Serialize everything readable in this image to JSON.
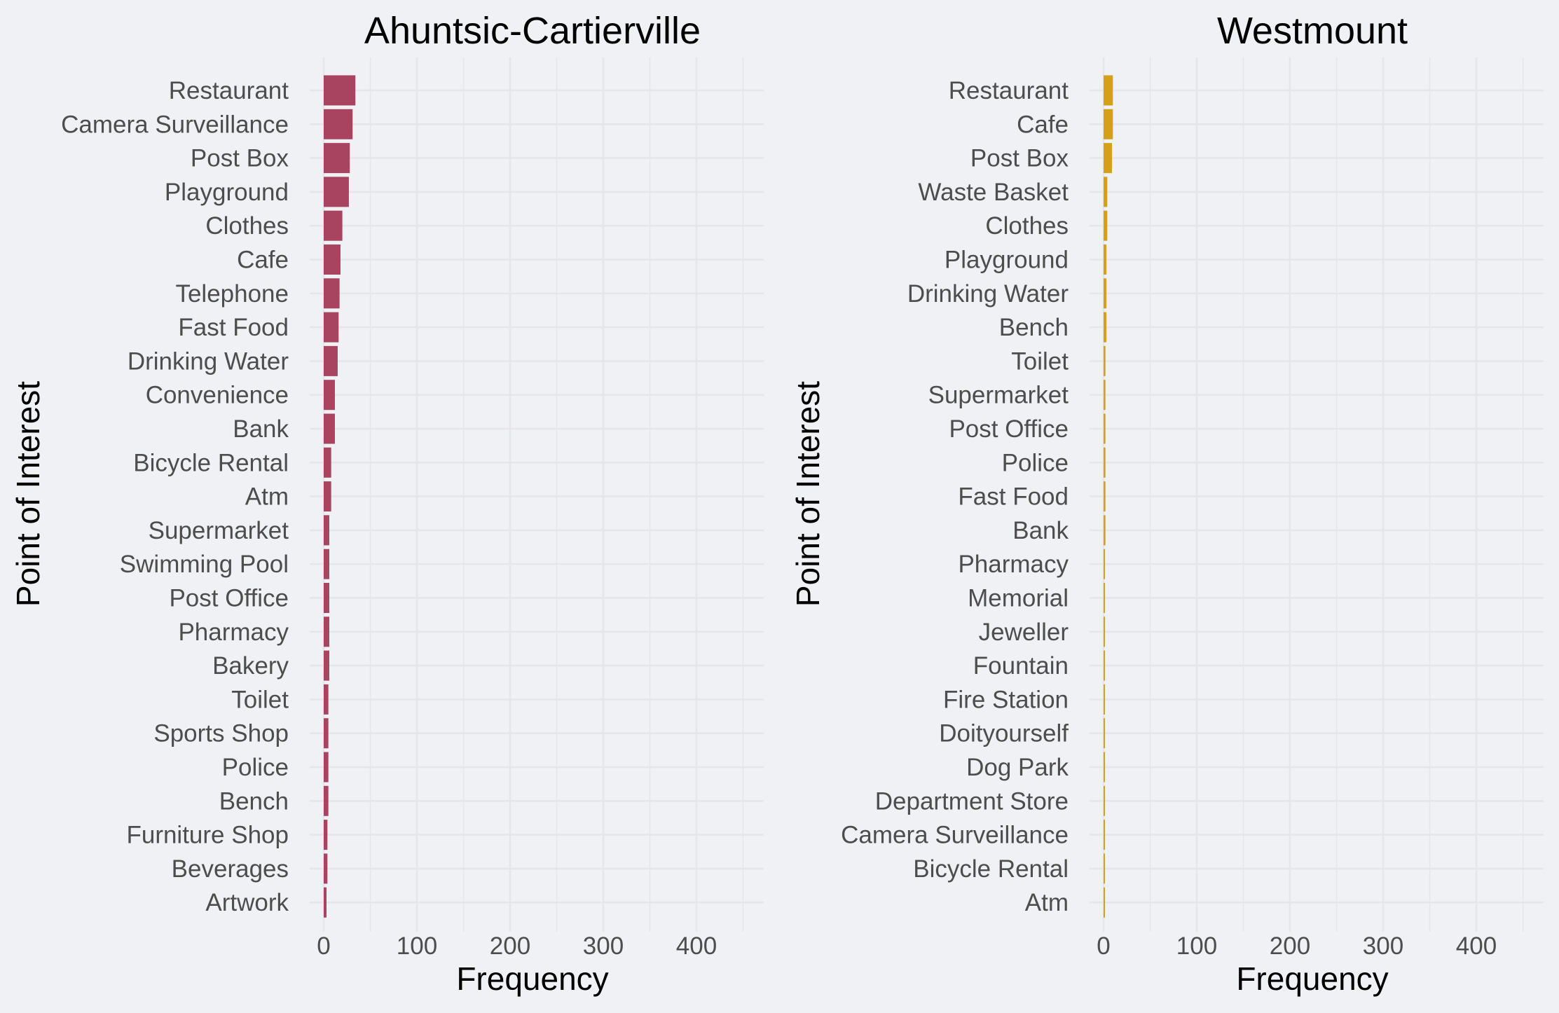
{
  "figure": {
    "background": "#f0f1f4",
    "grid_color": "#e6e6ea"
  },
  "chart_data": [
    {
      "type": "bar",
      "orientation": "horizontal",
      "title": "Ahuntsic-Cartierville",
      "xlabel": "Frequency",
      "ylabel": "Point of Interest",
      "xlim": [
        0,
        470
      ],
      "xticks": [
        0,
        100,
        200,
        300,
        400
      ],
      "grid": true,
      "color": "#a8445f",
      "categories": [
        "Restaurant",
        "Camera Surveillance",
        "Post Box",
        "Playground",
        "Clothes",
        "Cafe",
        "Telephone",
        "Fast Food",
        "Drinking Water",
        "Convenience",
        "Bank",
        "Bicycle Rental",
        "Atm",
        "Supermarket",
        "Swimming Pool",
        "Post Office",
        "Pharmacy",
        "Bakery",
        "Toilet",
        "Sports Shop",
        "Police",
        "Bench",
        "Furniture Shop",
        "Beverages",
        "Artwork"
      ],
      "values": [
        34,
        31,
        28,
        27,
        20,
        18,
        17,
        16,
        15,
        12,
        12,
        8,
        8,
        6,
        6,
        6,
        6,
        6,
        5,
        5,
        5,
        5,
        4,
        4,
        3
      ]
    },
    {
      "type": "bar",
      "orientation": "horizontal",
      "title": "Westmount",
      "xlabel": "Frequency",
      "ylabel": "Point of Interest",
      "xlim": [
        0,
        470
      ],
      "xticks": [
        0,
        100,
        200,
        300,
        400
      ],
      "grid": true,
      "color": "#d4a017",
      "categories": [
        "Restaurant",
        "Cafe",
        "Post Box",
        "Waste Basket",
        "Clothes",
        "Playground",
        "Drinking Water",
        "Bench",
        "Toilet",
        "Supermarket",
        "Post Office",
        "Police",
        "Fast Food",
        "Bank",
        "Pharmacy",
        "Memorial",
        "Jeweller",
        "Fountain",
        "Fire Station",
        "Doityourself",
        "Dog Park",
        "Department Store",
        "Camera Surveillance",
        "Bicycle Rental",
        "Atm"
      ],
      "values": [
        10,
        10,
        9,
        4,
        4,
        3,
        3,
        3,
        2,
        2,
        2,
        2,
        2,
        2,
        1,
        1,
        1,
        1,
        1,
        1,
        1,
        1,
        1,
        1,
        1
      ]
    }
  ]
}
